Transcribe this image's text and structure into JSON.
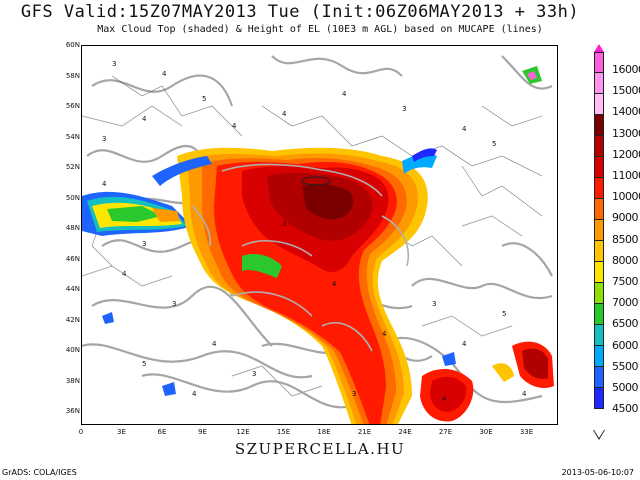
{
  "header": {
    "title": "GFS Valid:15Z07MAY2013 Tue (Init:06Z06MAY2013 + 33h)",
    "subtitle": "Max Cloud Top (shaded) & Height of EL (10E3 m AGL) based on MUCAPE (lines)"
  },
  "map": {
    "lat_labels": [
      "60N",
      "58N",
      "56N",
      "54N",
      "52N",
      "50N",
      "48N",
      "46N",
      "44N",
      "42N",
      "40N",
      "38N",
      "36N"
    ],
    "lon_labels": [
      "0",
      "3E",
      "6E",
      "9E",
      "12E",
      "15E",
      "18E",
      "21E",
      "24E",
      "27E",
      "30E",
      "33E"
    ],
    "contour_labels": [
      "3",
      "4",
      "5",
      "4",
      "3",
      "4",
      "4",
      "4",
      "3",
      "4",
      "5",
      "4",
      "3",
      "4",
      "3",
      "4",
      "5",
      "3",
      "4",
      "3",
      "4",
      "4",
      "3",
      "4",
      "5",
      "4",
      "3",
      "4"
    ]
  },
  "colorbar": {
    "levels": [
      "16000",
      "15000",
      "14000",
      "13000",
      "12000",
      "11000",
      "10000",
      "9000",
      "8500",
      "8000",
      "7500",
      "7000",
      "6500",
      "6000",
      "5500",
      "5000",
      "4500"
    ],
    "colors": [
      "#ff5edd",
      "#ff94ee",
      "#ffbcf5",
      "#7a0000",
      "#b00000",
      "#d80000",
      "#ff1a00",
      "#ff6a00",
      "#ff9900",
      "#ffc400",
      "#ffe600",
      "#8ee000",
      "#2ac82a",
      "#13bfbf",
      "#00aaff",
      "#1e64ff",
      "#1e28ff"
    ],
    "top_arrow_color": "#ff1fcc"
  },
  "footer": {
    "watermark": "SZUPERCELLA.HU",
    "left": "GrADS: COLA/IGES",
    "right": "2013-05-06-10:07"
  }
}
